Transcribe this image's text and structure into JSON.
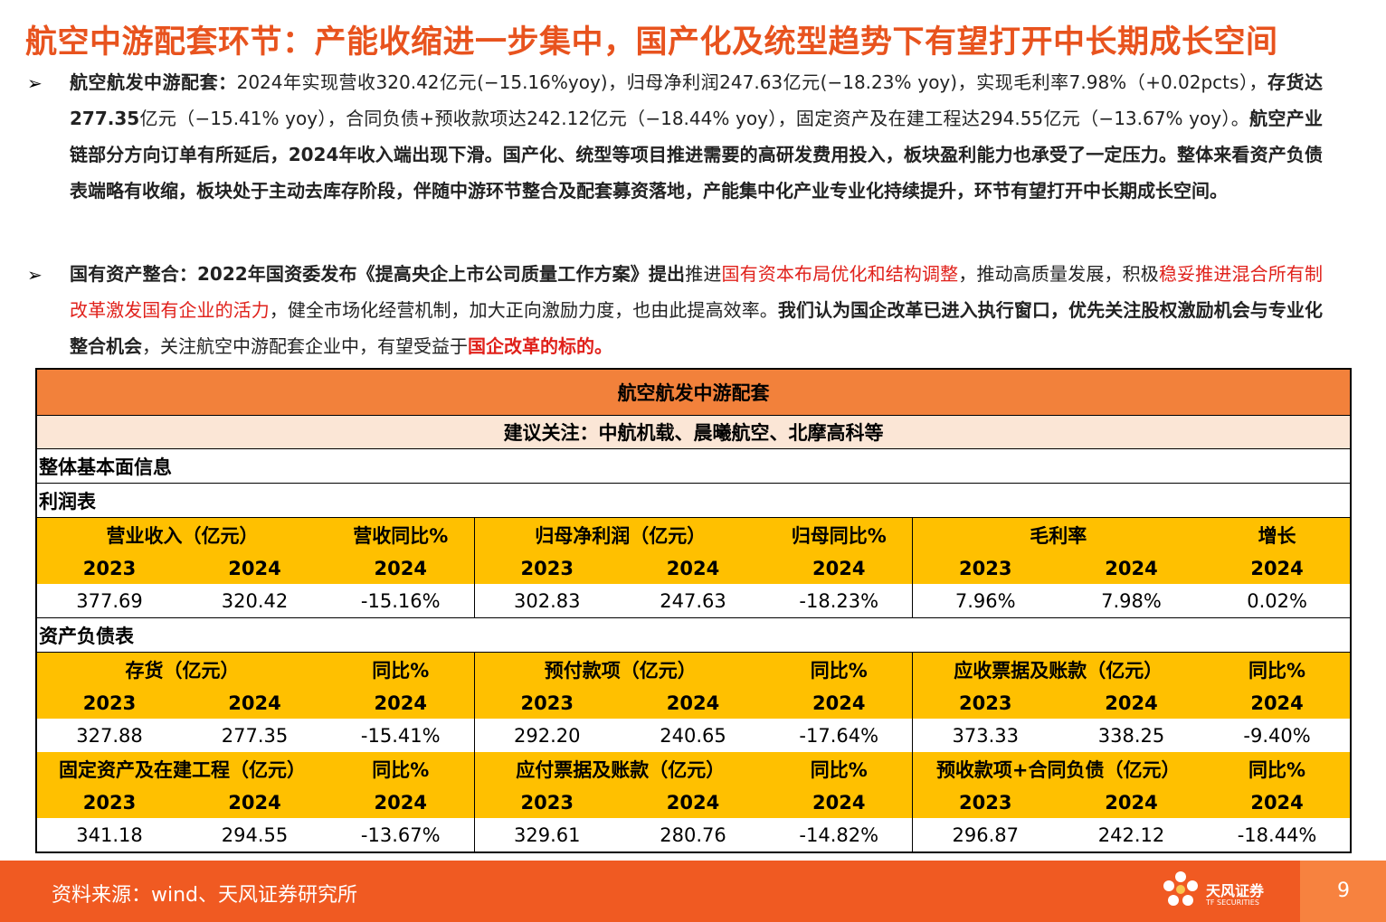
{
  "title": "航空中游配套环节：产能收缩进一步集中，国产化及统型趋势下有望打开中长期成长空间",
  "bullet_mark": "➢",
  "p1": {
    "label": "航空航发中游配套：",
    "t1": "2024年实现营收320.42亿元(−15.16%yoy)，归母净利润247.63亿元(−18.23% yoy)，实现毛利率7.98%（+0.02pcts），",
    "t2": "存货达277.35",
    "t3": "亿元（−15.41% yoy），合同负债+预收款项达242.12亿元（−18.44% yoy），固定资产及在建工程达294.55亿元（−13.67% yoy）。",
    "t4": "航空产业链部分方向订单有所延后，2024年收入端出现下滑。国产化、统型等项目推进需要的高研发费用投入，板块盈利能力也承受了一定压力。整体来看资产负债表端略有收缩，板块处于主动去库存阶段，伴随中游环节整合及配套募资落地，产能集中化产业专业化持续提升，环节有望打开中长期成长空间。"
  },
  "p2": {
    "label": "国有资产整合：2022年国资委发布《提高央企上市公司质量工作方案》提出",
    "t1": "推进",
    "r1": "国有资本布局优化和结构调整",
    "t2": "，推动高质量发展，积极",
    "r2": "稳妥推进混合所有制改革激发国有企业的活力",
    "t3": "，健全市场化经营机制，加大正向激励力度，也由此提高效率。",
    "b1": "我们认为国企改革已进入执行窗口，优先关注股权激励机会与专业化整合机会",
    "t4": "，关注航空中游配套企业中，有望受益于",
    "r3": "国企改革的标的。"
  },
  "table": {
    "title": "航空航发中游配套",
    "subtitle": "建议关注：中航机载、晨曦航空、北摩高科等",
    "section_overall": "整体基本面信息",
    "section_income": "利润表",
    "section_balance": "资产负债表",
    "y2023": "2023",
    "y2024": "2024",
    "income_headers": [
      "营业收入（亿元）",
      "营收同比%",
      "归母净利润（亿元）",
      "归母同比%",
      "毛利率",
      "增长"
    ],
    "income_values": [
      "377.69",
      "320.42",
      "-15.16%",
      "302.83",
      "247.63",
      "-18.23%",
      "7.96%",
      "7.98%",
      "0.02%"
    ],
    "bal1_headers": [
      "存货（亿元）",
      "同比%",
      "预付款项（亿元）",
      "同比%",
      "应收票据及账款（亿元）",
      "同比%"
    ],
    "bal1_values": [
      "327.88",
      "277.35",
      "-15.41%",
      "292.20",
      "240.65",
      "-17.64%",
      "373.33",
      "338.25",
      "-9.40%"
    ],
    "bal2_headers": [
      "固定资产及在建工程（亿元）",
      "同比%",
      "应付票据及账款（亿元）",
      "同比%",
      "预收款项+合同负债（亿元）",
      "同比%"
    ],
    "bal2_values": [
      "341.18",
      "294.55",
      "-13.67%",
      "329.61",
      "280.76",
      "-14.82%",
      "296.87",
      "242.12",
      "-18.44%"
    ]
  },
  "footer": {
    "source": "资料来源：wind、天风证券研究所",
    "logo_name": "天风证券",
    "logo_sub": "TF SECURITIES",
    "page": "9"
  },
  "colors": {
    "title": "#e8531e",
    "table_header": "#f2813b",
    "subheader": "#fbe6d6",
    "column_header": "#ffc000",
    "highlight_red": "#e0211b",
    "footer": "#f05a22"
  }
}
